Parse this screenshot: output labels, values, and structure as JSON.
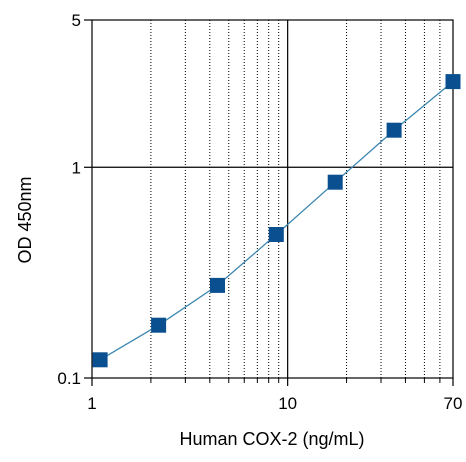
{
  "chart_data": {
    "type": "scatter",
    "title": "",
    "xlabel": "Human COX-2 (ng/mL)",
    "ylabel": "OD 450nm",
    "x_scale": "log",
    "y_scale": "log",
    "xlim": [
      1,
      70
    ],
    "ylim": [
      0.1,
      5
    ],
    "x_ticks": [
      {
        "value": 1,
        "label": "1"
      },
      {
        "value": 10,
        "label": "10"
      },
      {
        "value": 70,
        "label": "70"
      }
    ],
    "y_ticks": [
      {
        "value": 0.1,
        "label": "0.1"
      },
      {
        "value": 1,
        "label": "1"
      },
      {
        "value": 5,
        "label": "5"
      }
    ],
    "grid": true,
    "legend": "none",
    "series": [
      {
        "color": "#0a4f8f",
        "line_color": "#3a86b0",
        "marker": "square",
        "x": [
          1.1,
          2.19,
          4.38,
          8.75,
          17.5,
          35,
          70
        ],
        "y": [
          0.122,
          0.178,
          0.275,
          0.48,
          0.85,
          1.5,
          2.55
        ]
      }
    ]
  }
}
